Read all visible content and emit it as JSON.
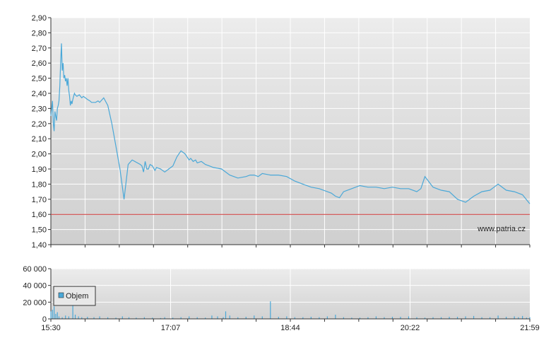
{
  "chart_data": [
    {
      "type": "line",
      "title": "",
      "xlabel": "",
      "ylabel": "",
      "ylim": [
        1.4,
        2.9
      ],
      "yticks": [
        "1,40",
        "1,50",
        "1,60",
        "1,70",
        "1,80",
        "1,90",
        "2,00",
        "2,10",
        "2,20",
        "2,30",
        "2,40",
        "2,50",
        "2,60",
        "2,70",
        "2,80",
        "2,90"
      ],
      "grid": true,
      "watermark": "www.patria.cz",
      "colors": {
        "line": "#4aa8d8",
        "reference": "#cc3333",
        "grid": "#ffffff"
      },
      "reference_value": 1.6,
      "series": [
        {
          "x_minutes": [
            0,
            2,
            3,
            4,
            5,
            6,
            7,
            8,
            9,
            10,
            11,
            12,
            13,
            14,
            15,
            16,
            17,
            18,
            19,
            20,
            21,
            22,
            23,
            24,
            25,
            26,
            27,
            28,
            29,
            30,
            32,
            35,
            38,
            40,
            45,
            48,
            50,
            52,
            55,
            58,
            60,
            65,
            70,
            75,
            80,
            85,
            90,
            95,
            100,
            110,
            112,
            114,
            116,
            118,
            120,
            122,
            125,
            128,
            130,
            135,
            140,
            145,
            150,
            155,
            160,
            165,
            170,
            172,
            175,
            178,
            180,
            185,
            190,
            195,
            200,
            210,
            220,
            230,
            240,
            245,
            250,
            255,
            260,
            270,
            280,
            290,
            300,
            310,
            320,
            330,
            340,
            345,
            350,
            355,
            360,
            370,
            380,
            390,
            400,
            410,
            420,
            430,
            440,
            450,
            455,
            460,
            470,
            480,
            490,
            500,
            510,
            520,
            530,
            540,
            545,
            550,
            560,
            570,
            580,
            589
          ],
          "y": [
            2.25,
            2.35,
            2.2,
            2.15,
            2.28,
            2.25,
            2.22,
            2.3,
            2.32,
            2.35,
            2.45,
            2.6,
            2.73,
            2.55,
            2.6,
            2.5,
            2.52,
            2.48,
            2.5,
            2.45,
            2.5,
            2.42,
            2.38,
            2.32,
            2.35,
            2.33,
            2.36,
            2.38,
            2.4,
            2.39,
            2.38,
            2.39,
            2.37,
            2.38,
            2.36,
            2.35,
            2.34,
            2.34,
            2.34,
            2.35,
            2.34,
            2.37,
            2.32,
            2.2,
            2.05,
            1.9,
            1.7,
            1.93,
            1.96,
            1.93,
            1.92,
            1.88,
            1.95,
            1.9,
            1.9,
            1.93,
            1.92,
            1.89,
            1.91,
            1.9,
            1.88,
            1.9,
            1.92,
            1.98,
            2.02,
            2.0,
            1.96,
            1.97,
            1.95,
            1.96,
            1.94,
            1.95,
            1.93,
            1.92,
            1.91,
            1.9,
            1.86,
            1.84,
            1.85,
            1.86,
            1.86,
            1.85,
            1.87,
            1.86,
            1.86,
            1.85,
            1.82,
            1.8,
            1.78,
            1.77,
            1.75,
            1.74,
            1.72,
            1.71,
            1.75,
            1.77,
            1.79,
            1.78,
            1.78,
            1.77,
            1.78,
            1.77,
            1.77,
            1.75,
            1.77,
            1.85,
            1.78,
            1.76,
            1.75,
            1.7,
            1.68,
            1.72,
            1.75,
            1.76,
            1.78,
            1.8,
            1.76,
            1.75,
            1.73,
            1.67
          ]
        }
      ]
    },
    {
      "type": "bar",
      "title": "",
      "xlabel": "",
      "ylabel": "",
      "ylim": [
        0,
        60000
      ],
      "yticks": [
        "0",
        "20 000",
        "40 000",
        "60 000"
      ],
      "grid": true,
      "legend": {
        "entries": [
          "Objem"
        ],
        "placement": "top-left"
      },
      "colors": {
        "bar": "#4aa8d8"
      },
      "x_tick_labels": [
        "15:30",
        "17:07",
        "18:44",
        "20:22",
        "21:59"
      ],
      "series": [
        {
          "name": "Objem",
          "x_minutes": [
            0,
            2,
            4,
            6,
            8,
            10,
            14,
            18,
            22,
            27,
            30,
            34,
            38,
            45,
            53,
            60,
            70,
            80,
            88,
            96,
            105,
            115,
            125,
            135,
            140,
            150,
            160,
            170,
            180,
            190,
            198,
            205,
            212,
            215,
            220,
            230,
            240,
            250,
            260,
            270,
            280,
            290,
            300,
            310,
            320,
            330,
            340,
            350,
            360,
            370,
            380,
            390,
            400,
            410,
            420,
            430,
            440,
            450,
            460,
            470,
            480,
            490,
            500,
            510,
            520,
            530,
            540,
            550,
            560,
            570,
            575,
            580,
            585,
            589
          ],
          "y": [
            9000,
            11000,
            15000,
            6000,
            8000,
            3000,
            2000,
            4000,
            3000,
            36000,
            5000,
            3000,
            2000,
            2500,
            2000,
            3000,
            2000,
            1500,
            3000,
            2000,
            1500,
            2000,
            1500,
            1000,
            2000,
            1500,
            2000,
            3000,
            2000,
            1500,
            4000,
            3000,
            2000,
            9000,
            4000,
            2000,
            2500,
            4000,
            3000,
            21000,
            2500,
            3000,
            2000,
            2000,
            2500,
            2000,
            3000,
            5000,
            2000,
            1500,
            1500,
            2000,
            3000,
            2000,
            2500,
            2500,
            3000,
            2000,
            1500,
            2000,
            2000,
            2500,
            2500,
            3000,
            3500,
            2000,
            2000,
            4000,
            2500,
            3000,
            2000,
            3500,
            1500,
            2000
          ]
        }
      ]
    }
  ]
}
